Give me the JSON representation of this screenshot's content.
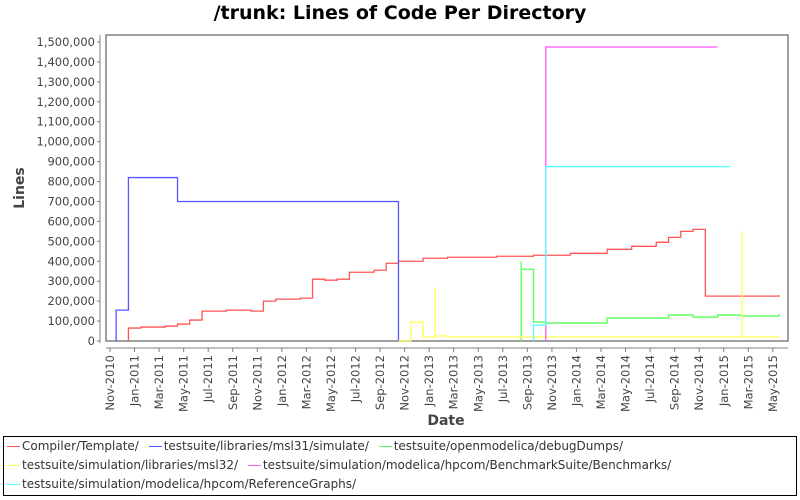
{
  "chart_data": {
    "type": "line",
    "title": "/trunk: Lines of Code Per Directory",
    "xlabel": "Date",
    "ylabel": "Lines",
    "ylim": [
      0,
      1500000
    ],
    "yticks": [
      "0",
      "100,000",
      "200,000",
      "300,000",
      "400,000",
      "500,000",
      "600,000",
      "700,000",
      "800,000",
      "900,000",
      "1,000,000",
      "1,100,000",
      "1,200,000",
      "1,300,000",
      "1,400,000",
      "1,500,000"
    ],
    "xticks": [
      "Nov-2010",
      "Jan-2011",
      "Mar-2011",
      "May-2011",
      "Jul-2011",
      "Sep-2011",
      "Nov-2011",
      "Jan-2012",
      "Mar-2012",
      "May-2012",
      "Jul-2012",
      "Sep-2012",
      "Nov-2012",
      "Jan-2013",
      "Mar-2013",
      "May-2013",
      "Jul-2013",
      "Sep-2013",
      "Nov-2013",
      "Jan-2014",
      "Mar-2014",
      "May-2014",
      "Jul-2014",
      "Sep-2014",
      "Nov-2014",
      "Jan-2015",
      "Mar-2015",
      "May-2015"
    ],
    "grid": false,
    "legend_position": "bottom",
    "series": [
      {
        "name": "Compiler/Template/",
        "color": "#ff5555",
        "points": [
          [
            "Dec-2010",
            0
          ],
          [
            "Dec-2010",
            65000
          ],
          [
            "Jan-2011",
            70000
          ],
          [
            "Mar-2011",
            75000
          ],
          [
            "Apr-2011",
            85000
          ],
          [
            "May-2011",
            105000
          ],
          [
            "Jun-2011",
            150000
          ],
          [
            "Aug-2011",
            155000
          ],
          [
            "Oct-2011",
            150000
          ],
          [
            "Nov-2011",
            200000
          ],
          [
            "Dec-2011",
            210000
          ],
          [
            "Feb-2012",
            215000
          ],
          [
            "Mar-2012",
            310000
          ],
          [
            "Apr-2012",
            305000
          ],
          [
            "May-2012",
            310000
          ],
          [
            "Jun-2012",
            345000
          ],
          [
            "Aug-2012",
            355000
          ],
          [
            "Sep-2012",
            390000
          ],
          [
            "Oct-2012",
            400000
          ],
          [
            "Dec-2012",
            415000
          ],
          [
            "Feb-2013",
            420000
          ],
          [
            "Jun-2013",
            425000
          ],
          [
            "Sep-2013",
            430000
          ],
          [
            "Dec-2013",
            440000
          ],
          [
            "Mar-2014",
            460000
          ],
          [
            "May-2014",
            475000
          ],
          [
            "Jul-2014",
            495000
          ],
          [
            "Aug-2014",
            520000
          ],
          [
            "Sep-2014",
            550000
          ],
          [
            "Oct-2014",
            560000
          ],
          [
            "Nov-2014",
            225000
          ],
          [
            "Apr-2015",
            225000
          ],
          [
            "May-2015",
            230000
          ]
        ]
      },
      {
        "name": "testsuite/libraries/msl31/simulate/",
        "color": "#5555ff",
        "points": [
          [
            "Nov-2010",
            0
          ],
          [
            "Nov-2010",
            155000
          ],
          [
            "Dec-2010",
            700000
          ],
          [
            "Dec-2010",
            820000
          ],
          [
            "Apr-2011",
            820000
          ],
          [
            "Apr-2011",
            700000
          ],
          [
            "Oct-2012",
            700000
          ],
          [
            "Oct-2012",
            0
          ]
        ]
      },
      {
        "name": "testsuite/openmodelica/debugDumps/",
        "color": "#55ff55",
        "points": [
          [
            "Aug-2013",
            0
          ],
          [
            "Aug-2013",
            400000
          ],
          [
            "Aug-2013",
            360000
          ],
          [
            "Sep-2013",
            95000
          ],
          [
            "Oct-2013",
            90000
          ],
          [
            "Feb-2014",
            90000
          ],
          [
            "Mar-2014",
            115000
          ],
          [
            "Jul-2014",
            115000
          ],
          [
            "Aug-2014",
            130000
          ],
          [
            "Sep-2014",
            130000
          ],
          [
            "Oct-2014",
            120000
          ],
          [
            "Dec-2014",
            130000
          ],
          [
            "Feb-2015",
            125000
          ],
          [
            "May-2015",
            135000
          ]
        ]
      },
      {
        "name": "testsuite/simulation/libraries/msl32/",
        "color": "#ffff55",
        "points": [
          [
            "Oct-2012",
            0
          ],
          [
            "Nov-2012",
            95000
          ],
          [
            "Dec-2012",
            65000
          ],
          [
            "Dec-2012",
            20000
          ],
          [
            "Jan-2013",
            270000
          ],
          [
            "Jan-2013",
            25000
          ],
          [
            "Feb-2013",
            20000
          ],
          [
            "Feb-2015",
            20000
          ],
          [
            "Feb-2015",
            550000
          ],
          [
            "Feb-2015",
            20000
          ],
          [
            "May-2015",
            25000
          ]
        ]
      },
      {
        "name": "testsuite/simulation/modelica/hpcom/BenchmarkSuite/Benchmarks/",
        "color": "#ff55ff",
        "points": [
          [
            "Oct-2013",
            0
          ],
          [
            "Oct-2013",
            1475000
          ],
          [
            "Dec-2014",
            1475000
          ]
        ]
      },
      {
        "name": "testsuite/simulation/modelica/hpcom/ReferenceGraphs/",
        "color": "#55ffff",
        "points": [
          [
            "Sep-2013",
            0
          ],
          [
            "Sep-2013",
            80000
          ],
          [
            "Oct-2013",
            100000
          ],
          [
            "Oct-2013",
            145000
          ],
          [
            "Oct-2013",
            875000
          ],
          [
            "Jan-2015",
            875000
          ]
        ]
      }
    ]
  },
  "legend": {
    "rows": [
      [
        {
          "label": "Compiler/Template/",
          "color": "#ff5555"
        },
        {
          "label": "testsuite/libraries/msl31/simulate/",
          "color": "#5555ff"
        },
        {
          "label": "testsuite/openmodelica/debugDumps/",
          "color": "#55ff55"
        }
      ],
      [
        {
          "label": "testsuite/simulation/libraries/msl32/",
          "color": "#ffff55"
        },
        {
          "label": "testsuite/simulation/modelica/hpcom/BenchmarkSuite/Benchmarks/",
          "color": "#ff55ff"
        }
      ],
      [
        {
          "label": "testsuite/simulation/modelica/hpcom/ReferenceGraphs/",
          "color": "#55ffff"
        }
      ]
    ]
  }
}
